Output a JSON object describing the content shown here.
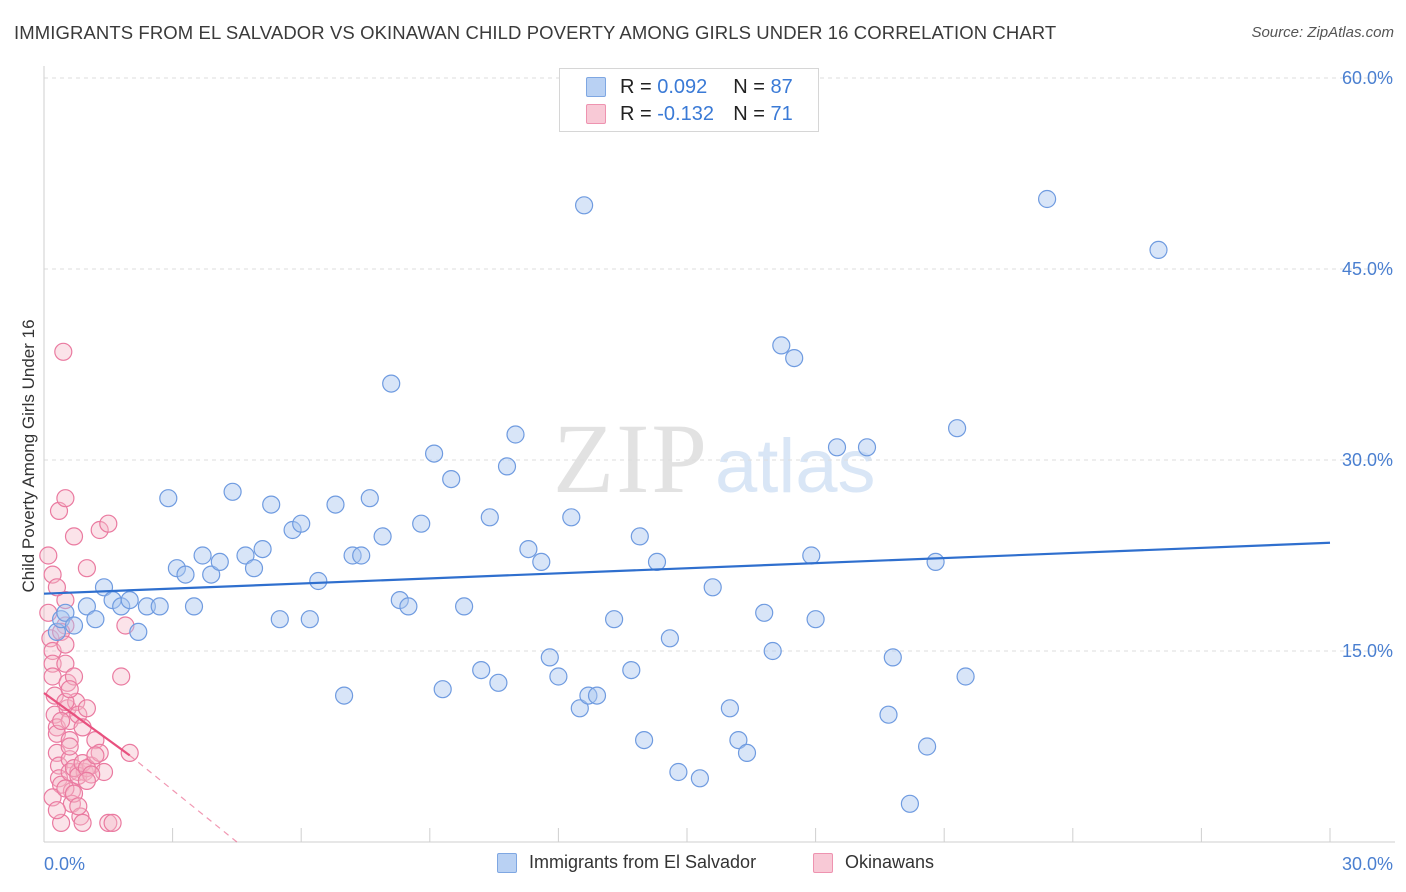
{
  "title": "IMMIGRANTS FROM EL SALVADOR VS OKINAWAN CHILD POVERTY AMONG GIRLS UNDER 16 CORRELATION CHART",
  "source": "Source: ZipAtlas.com",
  "watermark": {
    "zip": "ZIP",
    "atlas": "atlas"
  },
  "legend": {
    "rows": [
      {
        "r_label": "R =",
        "r_value": "0.092",
        "n_label": "N =",
        "n_value": "87",
        "color": "#a9c6f0"
      },
      {
        "r_label": "R =",
        "r_value": "-0.132",
        "n_label": "N =",
        "n_value": "71",
        "color": "#f5b8c9"
      }
    ]
  },
  "bottom_legend": [
    {
      "label": "Immigrants from El Salvador",
      "color": "#a9c6f0"
    },
    {
      "label": "Okinawans",
      "color": "#f5b8c9"
    }
  ],
  "chart_data": {
    "type": "scatter",
    "title": "IMMIGRANTS FROM EL SALVADOR VS OKINAWAN CHILD POVERTY AMONG GIRLS UNDER 16 CORRELATION CHART",
    "xlabel": "",
    "ylabel": "Child Poverty Among Girls Under 16",
    "xlim": [
      0,
      30
    ],
    "ylim": [
      0,
      60
    ],
    "x_tick_labels": [
      "0.0%",
      "30.0%"
    ],
    "y_tick_labels": [
      "15.0%",
      "30.0%",
      "45.0%",
      "60.0%"
    ],
    "y_ticks": [
      15,
      30,
      45,
      60
    ],
    "grid": true,
    "colors": {
      "blue_fill": "#a9c6f0",
      "blue_stroke": "#6f9be0",
      "blue_line": "#2f6fce",
      "pink_fill": "#f5b8c9",
      "pink_stroke": "#ea7aa0",
      "pink_line": "#e8517f"
    },
    "series": [
      {
        "name": "Immigrants from El Salvador",
        "trend": {
          "x": [
            0,
            30
          ],
          "y": [
            19.5,
            23.5
          ]
        },
        "points": [
          [
            0.3,
            16.5
          ],
          [
            0.4,
            17.5
          ],
          [
            0.5,
            18
          ],
          [
            0.7,
            17
          ],
          [
            1.0,
            18.5
          ],
          [
            1.2,
            17.5
          ],
          [
            1.4,
            20
          ],
          [
            1.6,
            19
          ],
          [
            1.8,
            18.5
          ],
          [
            2.0,
            19
          ],
          [
            2.2,
            16.5
          ],
          [
            2.4,
            18.5
          ],
          [
            2.7,
            18.5
          ],
          [
            2.9,
            27
          ],
          [
            3.1,
            21.5
          ],
          [
            3.3,
            21
          ],
          [
            3.5,
            18.5
          ],
          [
            3.7,
            22.5
          ],
          [
            3.9,
            21
          ],
          [
            4.1,
            22
          ],
          [
            4.4,
            27.5
          ],
          [
            4.7,
            22.5
          ],
          [
            4.9,
            21.5
          ],
          [
            5.1,
            23
          ],
          [
            5.3,
            26.5
          ],
          [
            5.5,
            17.5
          ],
          [
            5.8,
            24.5
          ],
          [
            6.0,
            25
          ],
          [
            6.2,
            17.5
          ],
          [
            6.4,
            20.5
          ],
          [
            6.8,
            26.5
          ],
          [
            7.0,
            11.5
          ],
          [
            7.2,
            22.5
          ],
          [
            7.4,
            22.5
          ],
          [
            7.6,
            27
          ],
          [
            7.9,
            24
          ],
          [
            8.1,
            36
          ],
          [
            8.3,
            19
          ],
          [
            8.5,
            18.5
          ],
          [
            8.8,
            25
          ],
          [
            9.1,
            30.5
          ],
          [
            9.3,
            12
          ],
          [
            9.5,
            28.5
          ],
          [
            9.8,
            18.5
          ],
          [
            10.2,
            13.5
          ],
          [
            10.4,
            25.5
          ],
          [
            10.6,
            12.5
          ],
          [
            10.8,
            29.5
          ],
          [
            11.0,
            32
          ],
          [
            11.3,
            23
          ],
          [
            11.6,
            22
          ],
          [
            11.8,
            14.5
          ],
          [
            12.0,
            13
          ],
          [
            12.3,
            25.5
          ],
          [
            12.5,
            10.5
          ],
          [
            12.7,
            11.5
          ],
          [
            12.9,
            11.5
          ],
          [
            13.3,
            17.5
          ],
          [
            13.7,
            13.5
          ],
          [
            13.9,
            24
          ],
          [
            14.0,
            8
          ],
          [
            14.3,
            22
          ],
          [
            14.6,
            16
          ],
          [
            14.8,
            5.5
          ],
          [
            15.3,
            5
          ],
          [
            15.6,
            20
          ],
          [
            16.0,
            10.5
          ],
          [
            16.2,
            8
          ],
          [
            16.4,
            7
          ],
          [
            16.8,
            18
          ],
          [
            17.0,
            15
          ],
          [
            17.2,
            39
          ],
          [
            17.5,
            38
          ],
          [
            17.9,
            22.5
          ],
          [
            18.0,
            17.5
          ],
          [
            18.5,
            31
          ],
          [
            19.2,
            31
          ],
          [
            19.7,
            10
          ],
          [
            19.8,
            14.5
          ],
          [
            20.2,
            3
          ],
          [
            20.6,
            7.5
          ],
          [
            20.8,
            22
          ],
          [
            21.3,
            32.5
          ],
          [
            21.5,
            13
          ],
          [
            23.4,
            50.5
          ],
          [
            26.0,
            46.5
          ],
          [
            12.6,
            50
          ]
        ]
      },
      {
        "name": "Okinawans",
        "trend": {
          "x": [
            0,
            2
          ],
          "y": [
            11.7,
            6.8
          ]
        },
        "trend_ext": {
          "x": [
            2,
            4.5
          ],
          "y": [
            6.8,
            0
          ]
        },
        "points": [
          [
            0.1,
            22.5
          ],
          [
            0.1,
            18
          ],
          [
            0.15,
            16
          ],
          [
            0.2,
            15
          ],
          [
            0.2,
            14
          ],
          [
            0.2,
            13
          ],
          [
            0.25,
            11.5
          ],
          [
            0.25,
            10
          ],
          [
            0.3,
            9
          ],
          [
            0.3,
            8.5
          ],
          [
            0.35,
            26
          ],
          [
            0.3,
            7
          ],
          [
            0.35,
            6
          ],
          [
            0.35,
            5
          ],
          [
            0.4,
            4.5
          ],
          [
            0.4,
            1.5
          ],
          [
            0.45,
            38.5
          ],
          [
            0.5,
            27
          ],
          [
            0.5,
            19
          ],
          [
            0.5,
            17
          ],
          [
            0.5,
            14
          ],
          [
            0.55,
            12.5
          ],
          [
            0.55,
            10.5
          ],
          [
            0.6,
            9.5
          ],
          [
            0.6,
            8
          ],
          [
            0.6,
            6.5
          ],
          [
            0.6,
            5.5
          ],
          [
            0.65,
            4
          ],
          [
            0.65,
            3
          ],
          [
            0.7,
            24
          ],
          [
            0.7,
            13
          ],
          [
            0.75,
            11
          ],
          [
            0.8,
            10
          ],
          [
            0.8,
            5.5
          ],
          [
            0.85,
            2
          ],
          [
            0.9,
            1.5
          ],
          [
            0.95,
            5.5
          ],
          [
            1.0,
            21.5
          ],
          [
            1.0,
            10.5
          ],
          [
            1.1,
            6
          ],
          [
            1.2,
            8
          ],
          [
            1.3,
            24.5
          ],
          [
            1.3,
            7
          ],
          [
            1.4,
            5.5
          ],
          [
            1.5,
            25
          ],
          [
            1.5,
            1.5
          ],
          [
            1.6,
            1.5
          ],
          [
            1.8,
            13
          ],
          [
            1.9,
            17
          ],
          [
            2.0,
            7
          ],
          [
            0.2,
            21
          ],
          [
            0.3,
            20
          ],
          [
            0.4,
            16.5
          ],
          [
            0.5,
            15.5
          ],
          [
            0.5,
            11
          ],
          [
            0.6,
            7.5
          ],
          [
            0.7,
            5.8
          ],
          [
            0.8,
            5.2
          ],
          [
            0.9,
            6.2
          ],
          [
            1.0,
            5.8
          ],
          [
            1.1,
            5.3
          ],
          [
            0.2,
            3.5
          ],
          [
            0.3,
            2.5
          ],
          [
            0.4,
            9.5
          ],
          [
            0.5,
            4.2
          ],
          [
            0.6,
            12
          ],
          [
            0.7,
            3.8
          ],
          [
            0.8,
            2.8
          ],
          [
            0.9,
            9
          ],
          [
            1.0,
            4.8
          ],
          [
            1.2,
            6.8
          ]
        ]
      }
    ]
  }
}
